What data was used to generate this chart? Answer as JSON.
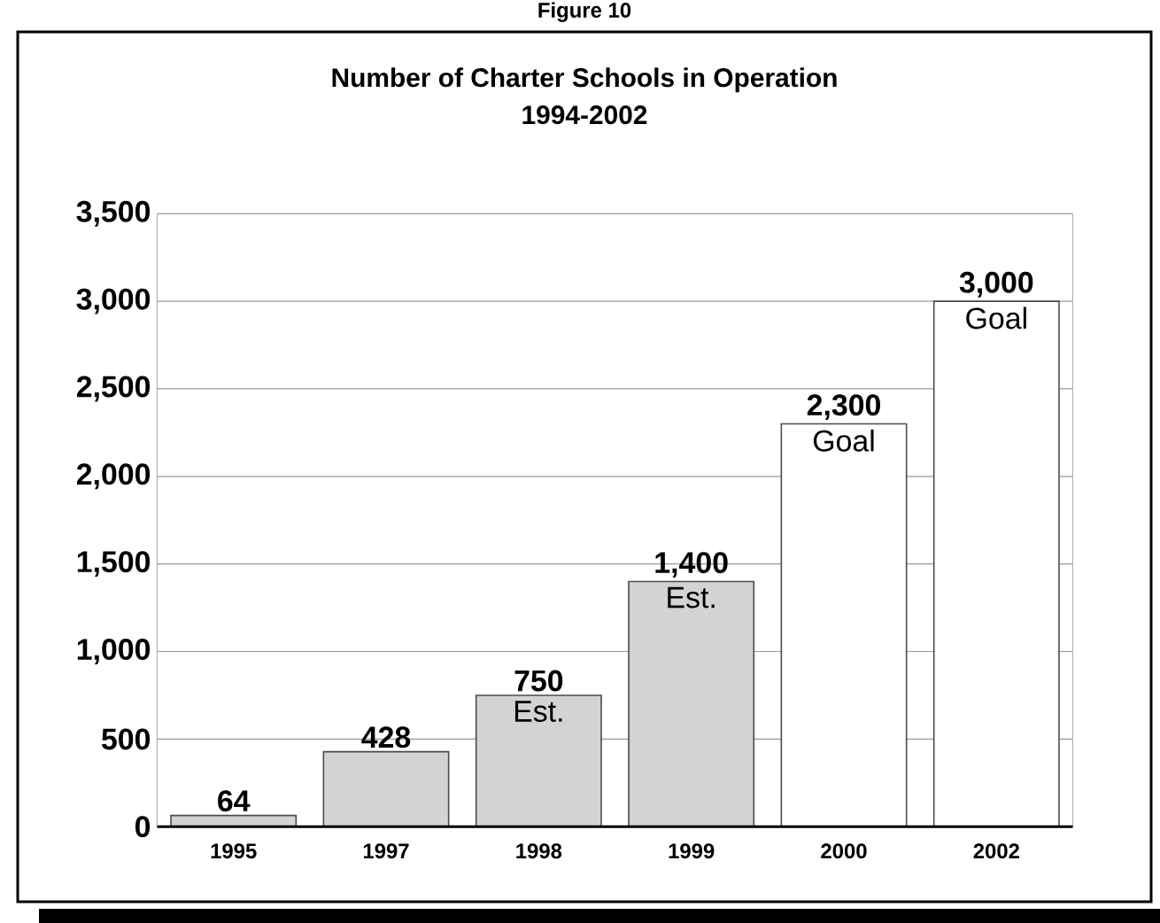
{
  "chart_data": {
    "type": "bar",
    "title": "Number of Charter Schools in Operation",
    "subtitle": "1994-2002",
    "categories": [
      "1995",
      "1997",
      "1998",
      "1999",
      "2000",
      "2002"
    ],
    "values": [
      64,
      428,
      750,
      1400,
      2300,
      3000
    ],
    "colors": [
      "#d3d3d3",
      "#d3d3d3",
      "#d3d3d3",
      "#d3d3d3",
      "#ffffff",
      "#ffffff"
    ],
    "value_labels": [
      "64",
      "428",
      "750",
      "1,400",
      "2,300",
      "3,000"
    ],
    "ylim": [
      0,
      3500
    ],
    "yticks": [
      {
        "value": 0,
        "label": "0"
      },
      {
        "value": 500,
        "label": "500"
      },
      {
        "value": 1000,
        "label": "1,000"
      },
      {
        "value": 1500,
        "label": "1,500"
      },
      {
        "value": 2000,
        "label": "2,000"
      },
      {
        "value": 2500,
        "label": "2,500"
      },
      {
        "value": 3000,
        "label": "3,000"
      },
      {
        "value": 3500,
        "label": "3,500"
      }
    ],
    "grid": "y",
    "annotations": [
      "Figure 10",
      {
        "text": "Est.",
        "x": "1998",
        "y": 750
      },
      {
        "text": "Est.",
        "x": "1999",
        "y": 1400
      },
      {
        "text": "Goal",
        "x": "2000",
        "y": 2300
      },
      {
        "text": "Goal",
        "x": "2002",
        "y": 3000
      }
    ]
  }
}
